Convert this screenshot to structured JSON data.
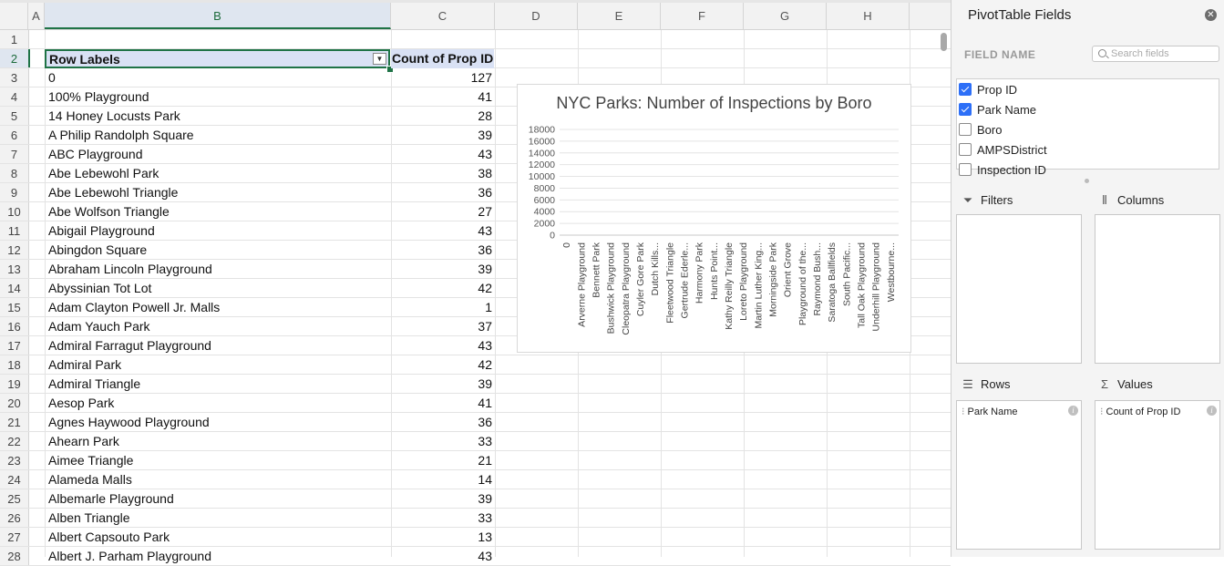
{
  "columns": [
    "A",
    "B",
    "C",
    "D",
    "E",
    "F",
    "G",
    "H"
  ],
  "row_numbers": [
    "1",
    "2",
    "3",
    "4",
    "5",
    "6",
    "7",
    "8",
    "9",
    "10",
    "11",
    "12",
    "13",
    "14",
    "15",
    "16",
    "17",
    "18",
    "19",
    "20",
    "21",
    "22",
    "23",
    "24",
    "25",
    "26",
    "27",
    "28"
  ],
  "pivot": {
    "row_labels_header": "Row Labels",
    "count_header": "Count of Prop ID",
    "rows": [
      {
        "label": "0",
        "count": "127"
      },
      {
        "label": "100% Playground",
        "count": "41"
      },
      {
        "label": "14 Honey Locusts Park",
        "count": "28"
      },
      {
        "label": "A Philip Randolph Square",
        "count": "39"
      },
      {
        "label": "ABC Playground",
        "count": "43"
      },
      {
        "label": "Abe Lebewohl Park",
        "count": "38"
      },
      {
        "label": "Abe Lebewohl Triangle",
        "count": "36"
      },
      {
        "label": "Abe Wolfson Triangle",
        "count": "27"
      },
      {
        "label": "Abigail Playground",
        "count": "43"
      },
      {
        "label": "Abingdon Square",
        "count": "36"
      },
      {
        "label": "Abraham Lincoln Playground",
        "count": "39"
      },
      {
        "label": "Abyssinian Tot Lot",
        "count": "42"
      },
      {
        "label": "Adam Clayton Powell Jr. Malls",
        "count": "1"
      },
      {
        "label": "Adam Yauch Park",
        "count": "37"
      },
      {
        "label": "Admiral Farragut Playground",
        "count": "43"
      },
      {
        "label": "Admiral Park",
        "count": "42"
      },
      {
        "label": "Admiral Triangle",
        "count": "39"
      },
      {
        "label": "Aesop Park",
        "count": "41"
      },
      {
        "label": "Agnes Haywood Playground",
        "count": "36"
      },
      {
        "label": "Ahearn Park",
        "count": "33"
      },
      {
        "label": "Aimee Triangle",
        "count": "21"
      },
      {
        "label": "Alameda Malls",
        "count": "14"
      },
      {
        "label": "Albemarle Playground",
        "count": "39"
      },
      {
        "label": "Alben Triangle",
        "count": "33"
      },
      {
        "label": "Albert Capsouto Park",
        "count": "13"
      },
      {
        "label": "Albert J. Parham Playground",
        "count": "43"
      }
    ]
  },
  "chart_data": {
    "type": "bar",
    "title": "NYC Parks: Number of Inspections by Boro",
    "xlabel": "",
    "ylabel": "",
    "ylim": [
      0,
      18000
    ],
    "y_ticks": [
      "0",
      "2000",
      "4000",
      "6000",
      "8000",
      "10000",
      "12000",
      "14000",
      "16000",
      "18000"
    ],
    "categories": [
      "0",
      "Arverne Playground",
      "Bennett Park",
      "Bushwick Playground",
      "Cleopatra Playground",
      "Cuyler Gore Park",
      "Dutch Kills...",
      "Fleetwood Triangle",
      "Gertrude Ederle...",
      "Harmony Park",
      "Hunts Point...",
      "Kathy Reilly Triangle",
      "Loreto Playground",
      "Martin Luther King...",
      "Morningside Park",
      "Orient Grove",
      "Playground of the...",
      "Raymond Bush...",
      "Saratoga Ballfields",
      "South Pacific...",
      "Tall Oak Playground",
      "Underhill Playground",
      "Westbourne..."
    ],
    "grid": true,
    "legend": "none"
  },
  "panel": {
    "title": "PivotTable Fields",
    "field_name_label": "FIELD NAME",
    "search_placeholder": "Search fields",
    "fields": [
      {
        "label": "Prop ID",
        "checked": true
      },
      {
        "label": "Park Name",
        "checked": true
      },
      {
        "label": "Boro",
        "checked": false
      },
      {
        "label": "AMPSDistrict",
        "checked": false
      },
      {
        "label": "Inspection ID",
        "checked": false
      }
    ],
    "filters_label": "Filters",
    "columns_label": "Columns",
    "rows_label": "Rows",
    "values_label": "Values",
    "rows_item": "Park Name",
    "values_item": "Count of Prop ID"
  }
}
